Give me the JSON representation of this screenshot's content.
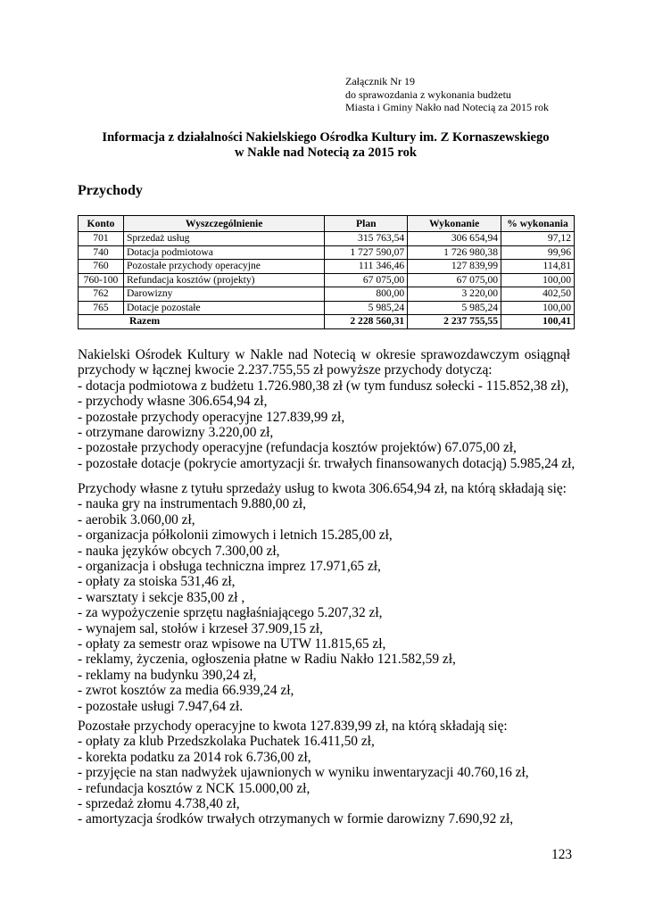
{
  "annex": {
    "lines": [
      "Załącznik Nr 19",
      "do sprawozdania z wykonania budżetu",
      "Miasta i Gminy Nakło nad Notecią za 2015 rok"
    ]
  },
  "title": {
    "line1": "Informacja z działalności Nakielskiego Ośrodka Kultury im. Z Kornaszewskiego",
    "line2": "w Nakle nad Notecią za 2015 rok"
  },
  "section_heading": "Przychody",
  "table": {
    "headers": [
      "Konto",
      "Wyszczególnienie",
      "Plan",
      "Wykonanie",
      "% wykonania"
    ],
    "rows": [
      [
        "701",
        "Sprzedaż usług",
        "315 763,54",
        "306 654,94",
        "97,12"
      ],
      [
        "740",
        "Dotacja podmiotowa",
        "1 727 590,07",
        "1 726 980,38",
        "99,96"
      ],
      [
        "760",
        "Pozostałe przychody operacyjne",
        "111 346,46",
        "127 839,99",
        "114,81"
      ],
      [
        "760-100",
        "Refundacja kosztów (projekty)",
        "67 075,00",
        "67 075,00",
        "100,00"
      ],
      [
        "762",
        "Darowizny",
        "800,00",
        "3 220,00",
        "402,50"
      ],
      [
        "765",
        "Dotacje pozostałe",
        "5 985,24",
        "5 985,24",
        "100,00"
      ]
    ],
    "total": [
      "Razem",
      "2 228 560,31",
      "2 237 755,55",
      "100,41"
    ]
  },
  "paragraph1": {
    "intro": "Nakielski Ośrodek Kultury w Nakle nad Notecią w okresie sprawozdawczym osiągnął przychody w łącznej kwocie 2.237.755,55 zł powyższe przychody dotyczą:",
    "items": [
      "- dotacja podmiotowa z budżetu 1.726.980,38 zł (w tym fundusz sołecki - 115.852,38 zł),",
      "- przychody własne 306.654,94 zł,",
      "- pozostałe przychody operacyjne 127.839,99 zł,",
      "- otrzymane darowizny 3.220,00 zł,",
      "- pozostałe przychody operacyjne (refundacja kosztów projektów) 67.075,00 zł,",
      "- pozostałe dotacje (pokrycie amortyzacji śr. trwałych finansowanych dotacją) 5.985,24 zł,"
    ]
  },
  "paragraph2": {
    "intro": "Przychody własne z tytułu sprzedaży usług to kwota 306.654,94 zł, na którą składają się:",
    "items": [
      "- nauka gry na instrumentach 9.880,00 zł,",
      "- aerobik 3.060,00 zł,",
      "- organizacja półkolonii zimowych i letnich 15.285,00 zł,",
      "- nauka języków obcych 7.300,00 zł,",
      "- organizacja i obsługa techniczna imprez 17.971,65 zł,",
      "- opłaty za stoiska 531,46 zł,",
      "- warsztaty i sekcje 835,00 zł ,",
      "- za wypożyczenie sprzętu nagłaśniającego 5.207,32 zł,",
      "- wynajem sal, stołów i krzeseł 37.909,15 zł,",
      "- opłaty za semestr oraz wpisowe na UTW 11.815,65 zł,",
      "- reklamy, życzenia, ogłoszenia płatne w Radiu Nakło 121.582,59 zł,",
      "- reklamy na budynku 390,24 zł,",
      "- zwrot kosztów za media 66.939,24 zł,",
      "- pozostałe usługi 7.947,64 zł."
    ]
  },
  "paragraph3": {
    "intro": "Pozostałe przychody operacyjne to kwota 127.839,99 zł, na którą składają się:",
    "items": [
      "- opłaty za klub Przedszkolaka Puchatek 16.411,50 zł,",
      "- korekta podatku za 2014 rok 6.736,00 zł,",
      "- przyjęcie na stan nadwyżek ujawnionych w wyniku inwentaryzacji 40.760,16 zł,",
      "- refundacja kosztów z NCK 15.000,00 zł,",
      "- sprzedaż złomu 4.738,40 zł,",
      "- amortyzacja środków trwałych otrzymanych w formie darowizny 7.690,92 zł,"
    ]
  },
  "page_number": "123"
}
